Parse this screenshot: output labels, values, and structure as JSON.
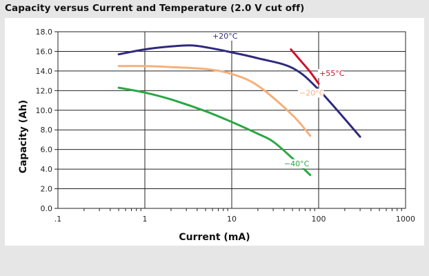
{
  "chart_data": {
    "type": "line",
    "title": "Capacity versus Current and Temperature (2.0 V cut off)",
    "xlabel": "Current (mA)",
    "ylabel": "Capacity (Ah)",
    "xscale": "log",
    "xlim": [
      0.1,
      1000
    ],
    "ylim": [
      0,
      18
    ],
    "x_ticks": [
      {
        "value": 0.1,
        "label": ".1"
      },
      {
        "value": 1,
        "label": "1"
      },
      {
        "value": 10,
        "label": "10"
      },
      {
        "value": 100,
        "label": "100"
      },
      {
        "value": 1000,
        "label": "1000"
      }
    ],
    "y_ticks": [
      {
        "value": 0,
        "label": "0.0"
      },
      {
        "value": 2,
        "label": "2.0"
      },
      {
        "value": 4,
        "label": "4.0"
      },
      {
        "value": 6,
        "label": "6.0"
      },
      {
        "value": 8,
        "label": "8.0"
      },
      {
        "value": 10,
        "label": "10.0"
      },
      {
        "value": 12,
        "label": "12.0"
      },
      {
        "value": 14,
        "label": "14.0"
      },
      {
        "value": 16,
        "label": "16.0"
      },
      {
        "value": 18,
        "label": "18.0"
      }
    ],
    "grid": true,
    "series": [
      {
        "name": "+20°C",
        "color": "#2e2a7d",
        "x": [
          0.5,
          1,
          2,
          3.5,
          6,
          10,
          20,
          50,
          100,
          300
        ],
        "y": [
          15.7,
          16.2,
          16.5,
          16.6,
          16.3,
          15.9,
          15.3,
          14.3,
          12.1,
          7.3
        ]
      },
      {
        "name": "+55°C",
        "color": "#d0102a",
        "x": [
          48,
          60,
          80,
          100
        ],
        "y": [
          16.2,
          15.2,
          13.9,
          12.7
        ]
      },
      {
        "name": "-20°C",
        "color": "#f5b07a",
        "x": [
          0.5,
          1,
          2,
          5,
          10,
          20,
          50,
          80
        ],
        "y": [
          14.5,
          14.5,
          14.4,
          14.2,
          13.7,
          12.5,
          9.5,
          7.4
        ]
      },
      {
        "name": "-40°C",
        "color": "#2aa745",
        "x": [
          0.5,
          1,
          2,
          5,
          10,
          20,
          30,
          50,
          80
        ],
        "y": [
          12.3,
          11.8,
          11.1,
          9.9,
          8.8,
          7.6,
          6.8,
          5.1,
          3.4
        ]
      }
    ],
    "annotations": [
      {
        "text": "+20°C",
        "series": "+20°C",
        "x": 6,
        "y": 17.3
      },
      {
        "text": "+55°C",
        "series": "+55°C",
        "x": 102,
        "y": 13.5
      },
      {
        "text": "−20°C",
        "series": "-20°C",
        "x": 60,
        "y": 11.5
      },
      {
        "text": "−40°C",
        "series": "-40°C",
        "x": 40,
        "y": 4.3
      }
    ]
  }
}
